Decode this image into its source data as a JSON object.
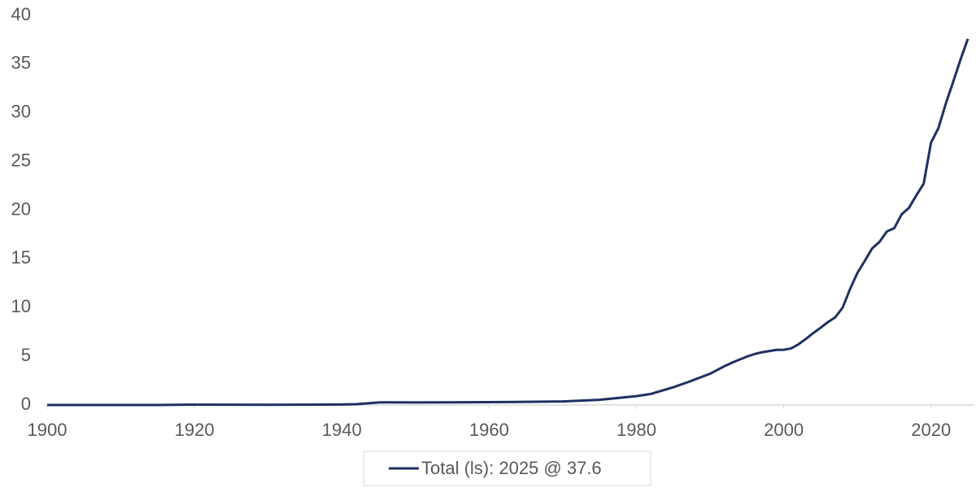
{
  "chart_data": {
    "type": "line",
    "x": [
      1900,
      1915,
      1919,
      1930,
      1935,
      1940,
      1942,
      1945,
      1946,
      1950,
      1955,
      1960,
      1965,
      1970,
      1975,
      1980,
      1982,
      1985,
      1987,
      1990,
      1992,
      1993,
      1995,
      1996,
      1997,
      1998,
      1999,
      2000,
      2001,
      2002,
      2003,
      2004,
      2005,
      2006,
      2007,
      2008,
      2009,
      2010,
      2011,
      2012,
      2013,
      2014,
      2015,
      2016,
      2017,
      2018,
      2019,
      2020,
      2021,
      2022,
      2023,
      2024,
      2025
    ],
    "series": [
      {
        "name": "Total (ls): 2025 @ 37.6",
        "color": "#1f3060",
        "values": [
          0,
          0,
          0.03,
          0.02,
          0.03,
          0.05,
          0.08,
          0.26,
          0.27,
          0.26,
          0.27,
          0.29,
          0.32,
          0.37,
          0.53,
          0.91,
          1.14,
          1.82,
          2.35,
          3.21,
          4.0,
          4.35,
          4.97,
          5.22,
          5.41,
          5.53,
          5.66,
          5.67,
          5.81,
          6.23,
          6.78,
          7.38,
          7.93,
          8.51,
          9.01,
          10.0,
          11.9,
          13.56,
          14.79,
          16.07,
          16.74,
          17.82,
          18.15,
          19.57,
          20.24,
          21.52,
          22.72,
          26.95,
          28.43,
          30.93,
          33.17,
          35.46,
          37.6
        ]
      }
    ],
    "xlim": [
      1900,
      2025
    ],
    "xticks": [
      1900,
      1920,
      1940,
      1960,
      1980,
      2000,
      2020
    ],
    "ylim": [
      0,
      40
    ],
    "yticks": [
      0,
      5,
      10,
      15,
      20,
      25,
      30,
      35,
      40
    ],
    "legend": "bottom"
  }
}
